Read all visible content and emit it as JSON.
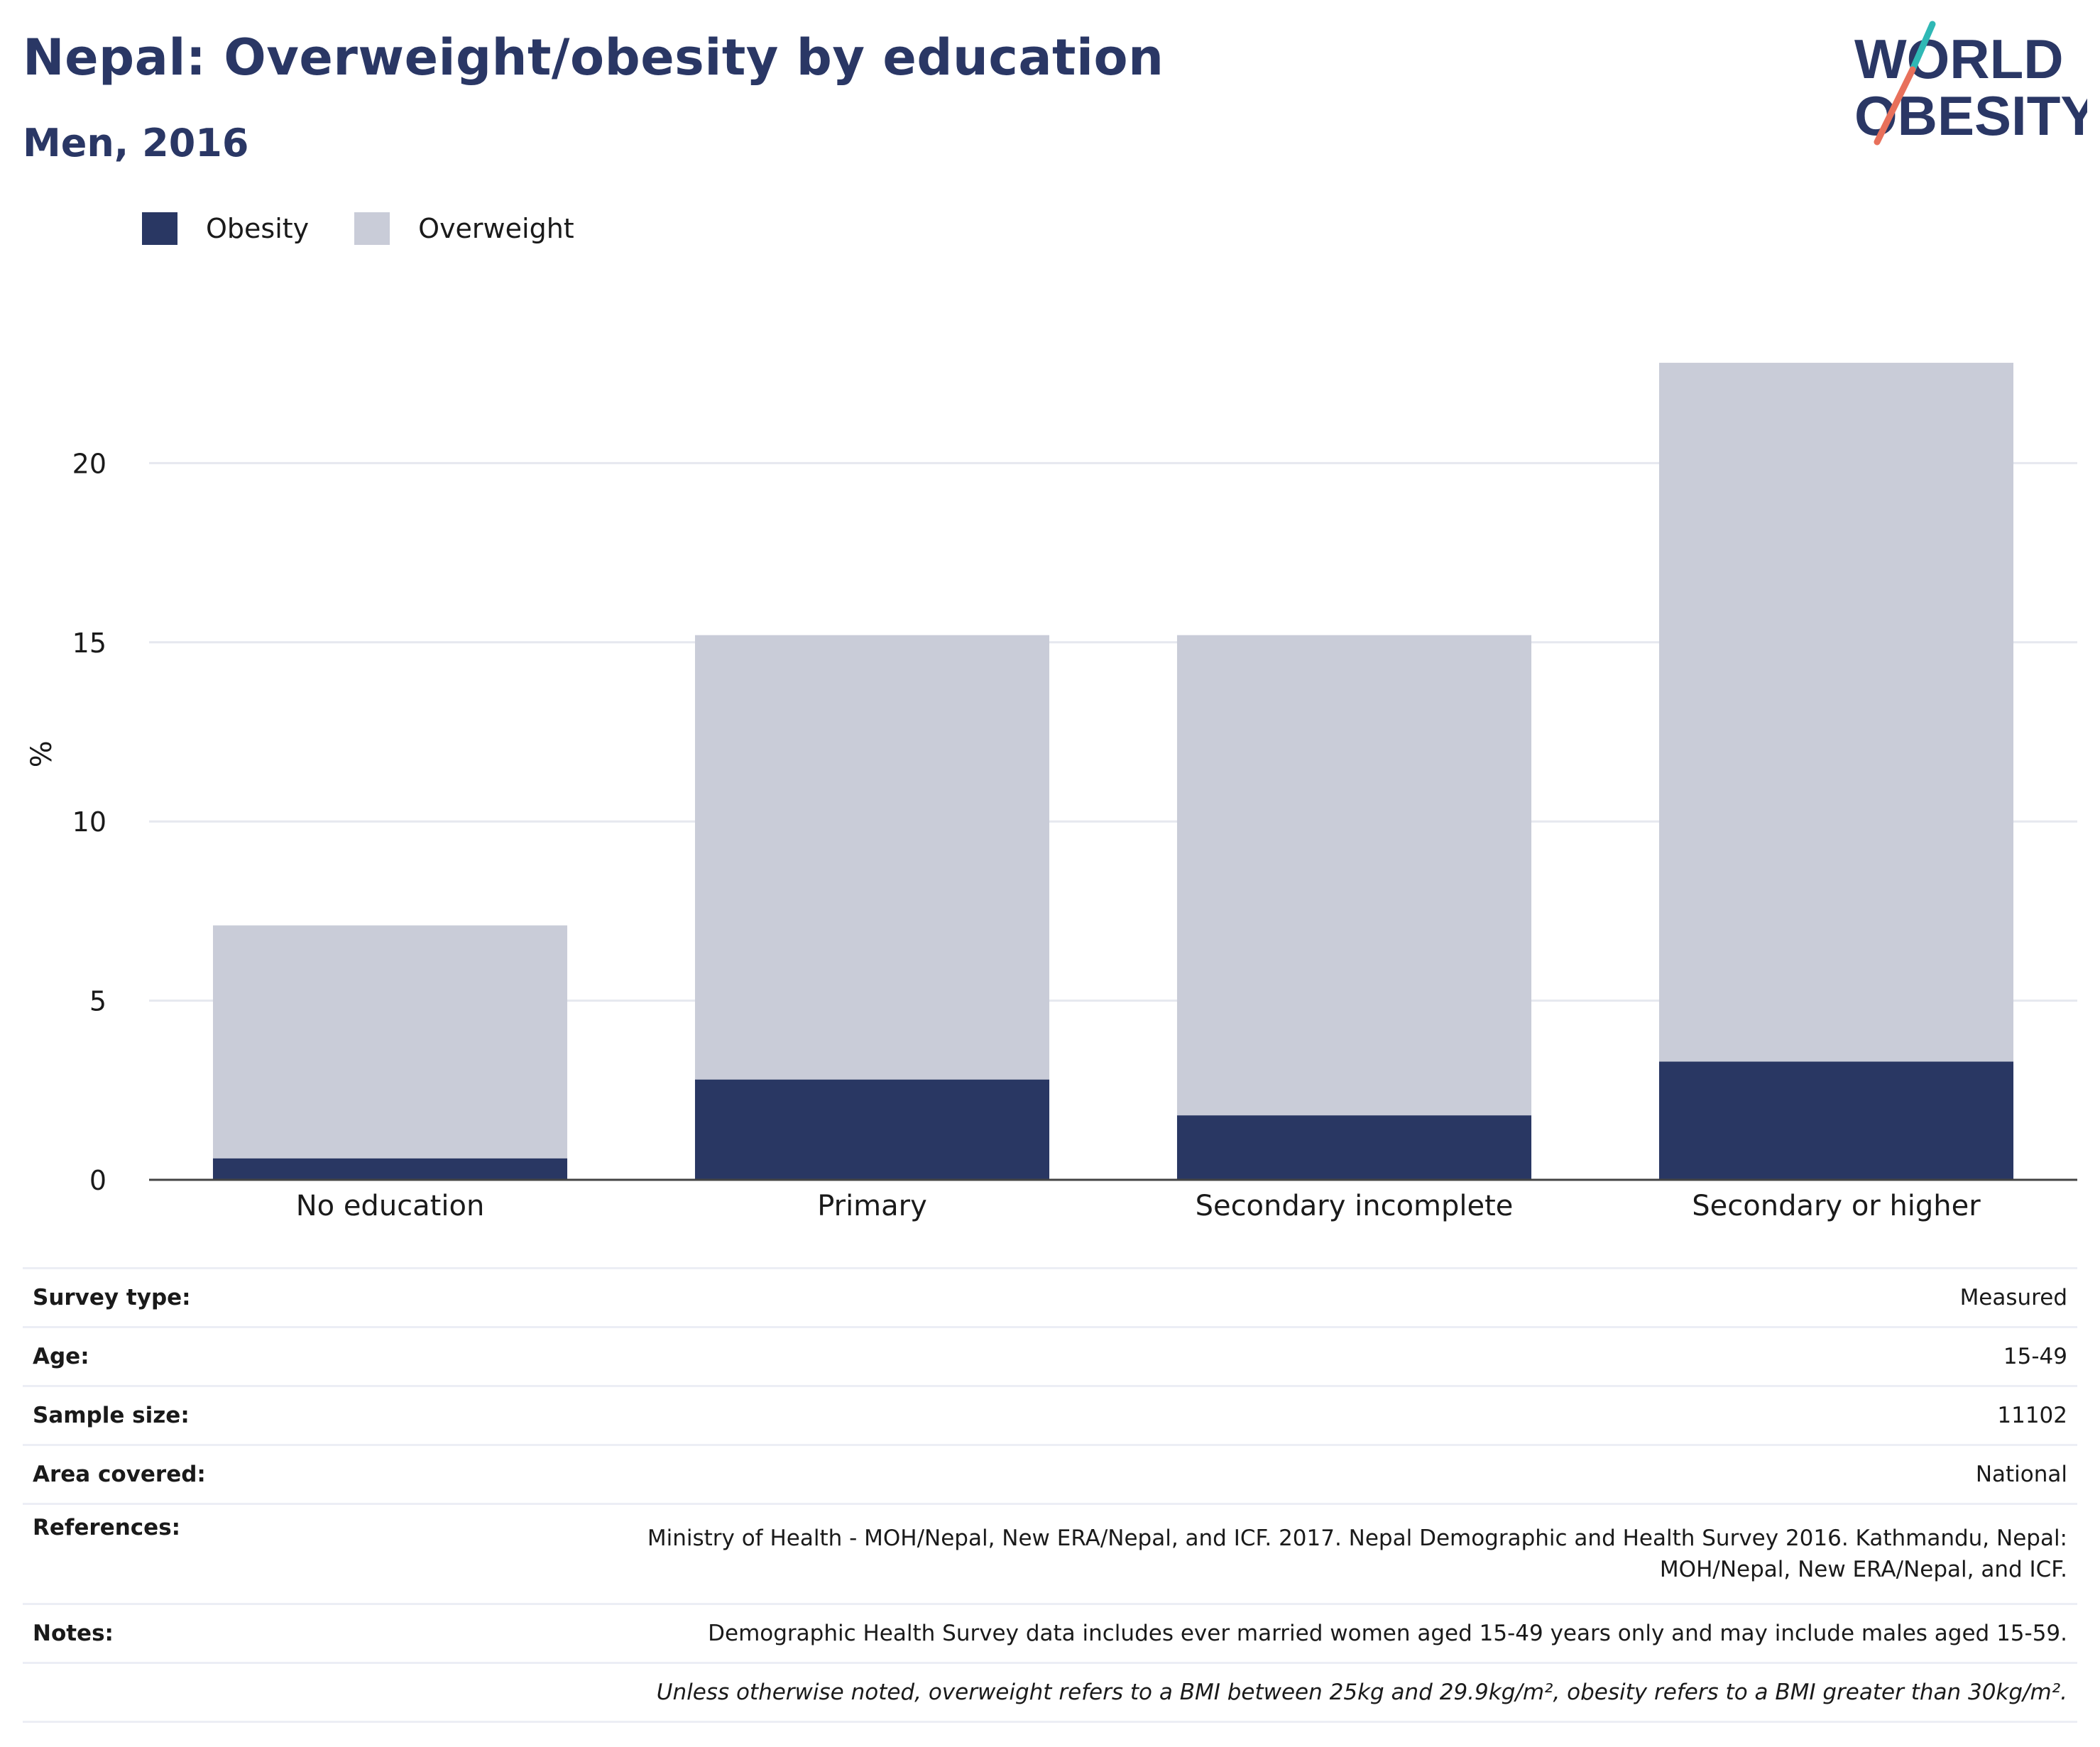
{
  "header": {
    "title": "Nepal: Overweight/obesity by education",
    "subtitle": "Men, 2016"
  },
  "logo": {
    "line1": "WORLD",
    "line2": "OBESITY"
  },
  "colors": {
    "obesity": "#293763",
    "overweight": "#c9ccd8",
    "title": "#2a3765",
    "logo_teal": "#2fb8b5",
    "logo_coral": "#e8705b"
  },
  "chart_data": {
    "type": "bar",
    "stacked": true,
    "categories": [
      "No education",
      "Primary",
      "Secondary incomplete",
      "Secondary or higher"
    ],
    "series": [
      {
        "name": "Obesity",
        "values": [
          0.6,
          2.8,
          1.8,
          3.3
        ]
      },
      {
        "name": "Overweight",
        "values": [
          6.5,
          12.4,
          13.4,
          19.5
        ]
      }
    ],
    "ylabel": "%",
    "ylim": [
      0,
      25
    ],
    "yticks": [
      0,
      5,
      10,
      15,
      20
    ],
    "grid": true,
    "legend_position": "top-left"
  },
  "info": {
    "survey_type": {
      "label": "Survey type:",
      "value": "Measured"
    },
    "age": {
      "label": "Age:",
      "value": "15-49"
    },
    "sample_size": {
      "label": "Sample size:",
      "value": "11102"
    },
    "area_covered": {
      "label": "Area covered:",
      "value": "National"
    },
    "references": {
      "label": "References:",
      "line1": "Ministry of Health - MOH/Nepal, New ERA/Nepal, and ICF. 2017. Nepal Demographic and Health Survey 2016. Kathmandu, Nepal:",
      "line2": "MOH/Nepal, New ERA/Nepal, and ICF."
    },
    "notes": {
      "label": "Notes:",
      "value": "Demographic Health Survey data includes ever married women aged 15-49 years only and may include males aged 15-59."
    },
    "footnote": "Unless otherwise noted, overweight refers to a BMI between 25kg and 29.9kg/m², obesity refers to a BMI greater than 30kg/m²."
  }
}
